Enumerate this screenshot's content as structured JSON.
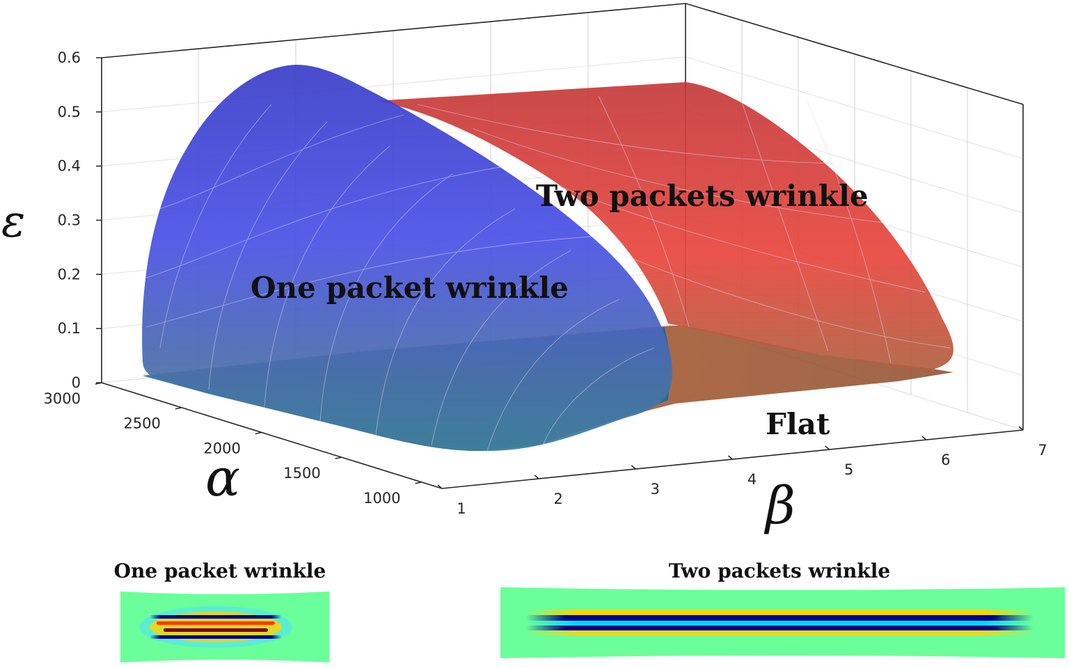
{
  "chart_data": {
    "type": "surface",
    "axes": {
      "x": {
        "label": "β",
        "ticks": [
          "1",
          "2",
          "3",
          "4",
          "5",
          "6",
          "7"
        ],
        "range": [
          1,
          7
        ]
      },
      "y": {
        "label": "α",
        "ticks": [
          "1000",
          "1500",
          "2000",
          "2500",
          "3000"
        ],
        "range": [
          1000,
          3000
        ]
      },
      "z": {
        "label": "ε",
        "ticks": [
          "0",
          "0.1",
          "0.2",
          "0.3",
          "0.4",
          "0.5",
          "0.6"
        ],
        "range": [
          0,
          0.6
        ]
      }
    },
    "grid": true,
    "regions": [
      {
        "name": "One packet wrinkle",
        "color": "#3f4fe0"
      },
      {
        "name": "Two packets wrinkle",
        "color": "#e23a35"
      },
      {
        "name": "Flat",
        "color": "#b35a1e"
      }
    ],
    "insets": [
      {
        "title": "One packet wrinkle"
      },
      {
        "title": "Two packets wrinkle"
      }
    ]
  }
}
